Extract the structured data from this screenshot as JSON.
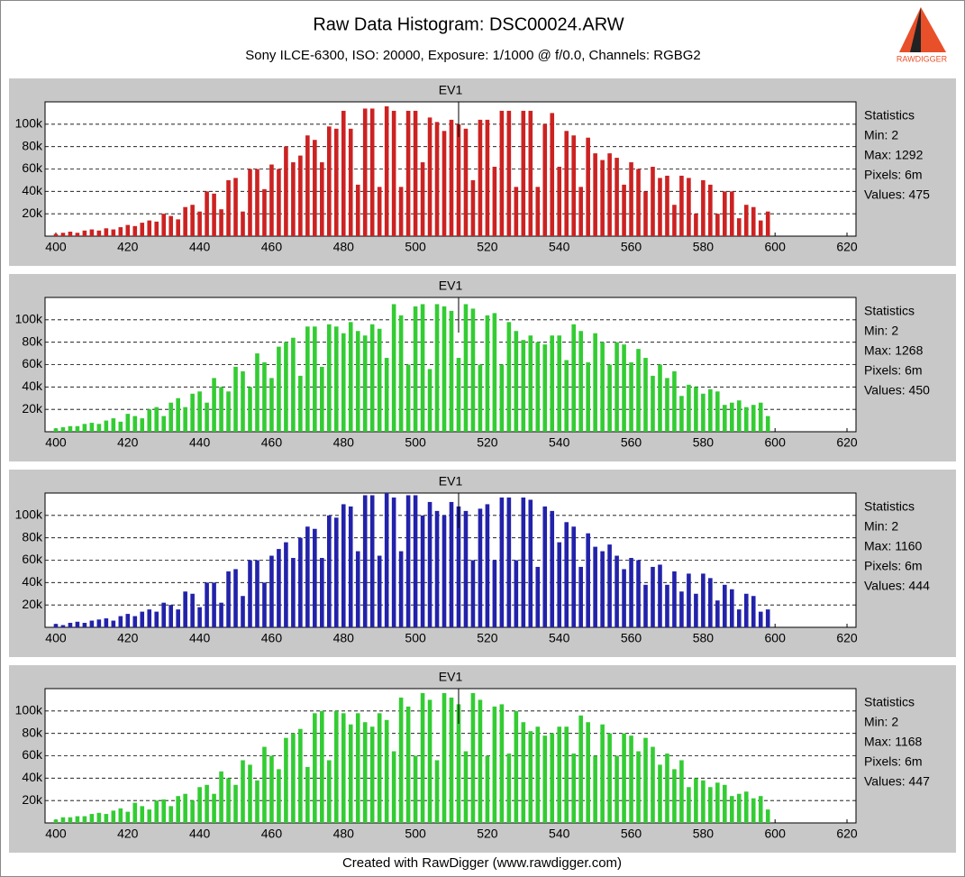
{
  "header": {
    "title": "Raw Data Histogram: DSC00024.ARW",
    "subtitle": "Sony ILCE-6300, ISO: 20000, Exposure: 1/1000 @ f/0.0, Channels: RGBG2"
  },
  "logo": "RAWDIGGER",
  "footer": "Created with RawDigger (www.rawdigger.com)",
  "chart_data": [
    {
      "type": "bar",
      "title": "EV1",
      "color": "#cc2222",
      "marker": 512,
      "x": [
        400,
        402,
        404,
        406,
        408,
        410,
        412,
        414,
        416,
        418,
        420,
        422,
        424,
        426,
        428,
        430,
        432,
        434,
        436,
        438,
        440,
        442,
        444,
        446,
        448,
        450,
        452,
        454,
        456,
        458,
        460,
        462,
        464,
        466,
        468,
        470,
        472,
        474,
        476,
        478,
        480,
        482,
        484,
        486,
        488,
        490,
        492,
        494,
        496,
        498,
        500,
        502,
        504,
        506,
        508,
        510,
        512,
        514,
        516,
        518,
        520,
        522,
        524,
        526,
        528,
        530,
        532,
        534,
        536,
        538,
        540,
        542,
        544,
        546,
        548,
        550,
        552,
        554,
        556,
        558,
        560,
        562,
        564,
        566,
        568,
        570,
        572,
        574,
        576,
        578,
        580,
        582,
        584,
        586,
        588,
        590,
        592,
        594,
        596,
        598
      ],
      "values": [
        2000,
        3000,
        4000,
        3000,
        5000,
        6000,
        5000,
        7000,
        6000,
        8000,
        10000,
        9000,
        12000,
        14000,
        13000,
        20000,
        18000,
        15000,
        26000,
        28000,
        22000,
        40000,
        38000,
        24000,
        50000,
        52000,
        22000,
        60000,
        60000,
        42000,
        64000,
        60000,
        80000,
        66000,
        72000,
        90000,
        86000,
        66000,
        98000,
        96000,
        112000,
        96000,
        46000,
        114000,
        114000,
        44000,
        116000,
        112000,
        44000,
        112000,
        112000,
        66000,
        106000,
        102000,
        94000,
        104000,
        100000,
        96000,
        50000,
        104000,
        104000,
        62000,
        112000,
        112000,
        44000,
        112000,
        112000,
        44000,
        100000,
        110000,
        62000,
        94000,
        90000,
        44000,
        88000,
        74000,
        68000,
        74000,
        70000,
        46000,
        66000,
        60000,
        40000,
        62000,
        52000,
        54000,
        28000,
        54000,
        52000,
        20000,
        50000,
        46000,
        20000,
        40000,
        40000,
        16000,
        28000,
        26000,
        14000,
        22000
      ],
      "xlim": [
        397,
        622.5
      ],
      "ylim": [
        0,
        120000
      ],
      "xticks": [
        400,
        420,
        440,
        460,
        480,
        500,
        520,
        540,
        560,
        580,
        600,
        620
      ],
      "yticks": [
        {
          "value": 20000,
          "label": "20k"
        },
        {
          "value": 40000,
          "label": "40k"
        },
        {
          "value": 60000,
          "label": "60k"
        },
        {
          "value": 80000,
          "label": "80k"
        },
        {
          "value": 100000,
          "label": "100k"
        }
      ],
      "grid": true,
      "stats": [
        "Statistics",
        "Min: 2",
        "Max: 1292",
        "Pixels: 6m",
        "Values: 475"
      ]
    },
    {
      "type": "bar",
      "title": "EV1",
      "color": "#33cc33",
      "marker": 512,
      "x": [
        400,
        402,
        404,
        406,
        408,
        410,
        412,
        414,
        416,
        418,
        420,
        422,
        424,
        426,
        428,
        430,
        432,
        434,
        436,
        438,
        440,
        442,
        444,
        446,
        448,
        450,
        452,
        454,
        456,
        458,
        460,
        462,
        464,
        466,
        468,
        470,
        472,
        474,
        476,
        478,
        480,
        482,
        484,
        486,
        488,
        490,
        492,
        494,
        496,
        498,
        500,
        502,
        504,
        506,
        508,
        510,
        512,
        514,
        516,
        518,
        520,
        522,
        524,
        526,
        528,
        530,
        532,
        534,
        536,
        538,
        540,
        542,
        544,
        546,
        548,
        550,
        552,
        554,
        556,
        558,
        560,
        562,
        564,
        566,
        568,
        570,
        572,
        574,
        576,
        578,
        580,
        582,
        584,
        586,
        588,
        590,
        592,
        594,
        596,
        598
      ],
      "values": [
        3000,
        4000,
        5000,
        5000,
        7000,
        8000,
        7000,
        10000,
        12000,
        9000,
        16000,
        14000,
        12000,
        20000,
        22000,
        14000,
        26000,
        30000,
        22000,
        34000,
        36000,
        26000,
        48000,
        40000,
        36000,
        58000,
        54000,
        40000,
        70000,
        62000,
        48000,
        76000,
        80000,
        84000,
        50000,
        94000,
        94000,
        58000,
        96000,
        94000,
        88000,
        98000,
        90000,
        86000,
        96000,
        92000,
        66000,
        114000,
        104000,
        60000,
        112000,
        114000,
        56000,
        114000,
        112000,
        108000,
        66000,
        114000,
        110000,
        60000,
        104000,
        106000,
        60000,
        98000,
        90000,
        82000,
        86000,
        80000,
        78000,
        86000,
        86000,
        64000,
        96000,
        90000,
        62000,
        88000,
        80000,
        60000,
        80000,
        78000,
        62000,
        74000,
        66000,
        50000,
        60000,
        48000,
        54000,
        32000,
        42000,
        40000,
        34000,
        38000,
        36000,
        24000,
        26000,
        28000,
        22000,
        24000,
        26000,
        14000
      ],
      "xlim": [
        397,
        622.5
      ],
      "ylim": [
        0,
        120000
      ],
      "xticks": [
        400,
        420,
        440,
        460,
        480,
        500,
        520,
        540,
        560,
        580,
        600,
        620
      ],
      "yticks": [
        {
          "value": 20000,
          "label": "20k"
        },
        {
          "value": 40000,
          "label": "40k"
        },
        {
          "value": 60000,
          "label": "60k"
        },
        {
          "value": 80000,
          "label": "80k"
        },
        {
          "value": 100000,
          "label": "100k"
        }
      ],
      "grid": true,
      "stats": [
        "Statistics",
        "Min: 2",
        "Max: 1268",
        "Pixels: 6m",
        "Values: 450"
      ]
    },
    {
      "type": "bar",
      "title": "EV1",
      "color": "#2222aa",
      "marker": 512,
      "x": [
        400,
        402,
        404,
        406,
        408,
        410,
        412,
        414,
        416,
        418,
        420,
        422,
        424,
        426,
        428,
        430,
        432,
        434,
        436,
        438,
        440,
        442,
        444,
        446,
        448,
        450,
        452,
        454,
        456,
        458,
        460,
        462,
        464,
        466,
        468,
        470,
        472,
        474,
        476,
        478,
        480,
        482,
        484,
        486,
        488,
        490,
        492,
        494,
        496,
        498,
        500,
        502,
        504,
        506,
        508,
        510,
        512,
        514,
        516,
        518,
        520,
        522,
        524,
        526,
        528,
        530,
        532,
        534,
        536,
        538,
        540,
        542,
        544,
        546,
        548,
        550,
        552,
        554,
        556,
        558,
        560,
        562,
        564,
        566,
        568,
        570,
        572,
        574,
        576,
        578,
        580,
        582,
        584,
        586,
        588,
        590,
        592,
        594,
        596,
        598
      ],
      "values": [
        3000,
        2000,
        4000,
        5000,
        4000,
        6000,
        7000,
        8000,
        6000,
        10000,
        12000,
        10000,
        14000,
        16000,
        14000,
        22000,
        20000,
        16000,
        32000,
        30000,
        18000,
        40000,
        40000,
        22000,
        50000,
        52000,
        28000,
        60000,
        60000,
        40000,
        64000,
        70000,
        76000,
        62000,
        80000,
        90000,
        88000,
        62000,
        100000,
        98000,
        110000,
        108000,
        68000,
        118000,
        118000,
        64000,
        120000,
        116000,
        68000,
        118000,
        118000,
        100000,
        112000,
        104000,
        100000,
        112000,
        108000,
        104000,
        60000,
        106000,
        110000,
        60000,
        116000,
        116000,
        60000,
        116000,
        114000,
        54000,
        108000,
        104000,
        76000,
        94000,
        90000,
        54000,
        84000,
        72000,
        68000,
        74000,
        64000,
        52000,
        62000,
        60000,
        38000,
        54000,
        56000,
        38000,
        50000,
        32000,
        48000,
        30000,
        48000,
        44000,
        24000,
        38000,
        34000,
        16000,
        30000,
        28000,
        14000,
        16000
      ],
      "xlim": [
        397,
        622.5
      ],
      "ylim": [
        0,
        120000
      ],
      "xticks": [
        400,
        420,
        440,
        460,
        480,
        500,
        520,
        540,
        560,
        580,
        600,
        620
      ],
      "yticks": [
        {
          "value": 20000,
          "label": "20k"
        },
        {
          "value": 40000,
          "label": "40k"
        },
        {
          "value": 60000,
          "label": "60k"
        },
        {
          "value": 80000,
          "label": "80k"
        },
        {
          "value": 100000,
          "label": "100k"
        }
      ],
      "grid": true,
      "stats": [
        "Statistics",
        "Min: 2",
        "Max: 1160",
        "Pixels: 6m",
        "Values: 444"
      ]
    },
    {
      "type": "bar",
      "title": "EV1",
      "color": "#33cc33",
      "marker": 512,
      "x": [
        400,
        402,
        404,
        406,
        408,
        410,
        412,
        414,
        416,
        418,
        420,
        422,
        424,
        426,
        428,
        430,
        432,
        434,
        436,
        438,
        440,
        442,
        444,
        446,
        448,
        450,
        452,
        454,
        456,
        458,
        460,
        462,
        464,
        466,
        468,
        470,
        472,
        474,
        476,
        478,
        480,
        482,
        484,
        486,
        488,
        490,
        492,
        494,
        496,
        498,
        500,
        502,
        504,
        506,
        508,
        510,
        512,
        514,
        516,
        518,
        520,
        522,
        524,
        526,
        528,
        530,
        532,
        534,
        536,
        538,
        540,
        542,
        544,
        546,
        548,
        550,
        552,
        554,
        556,
        558,
        560,
        562,
        564,
        566,
        568,
        570,
        572,
        574,
        576,
        578,
        580,
        582,
        584,
        586,
        588,
        590,
        592,
        594,
        596,
        598
      ],
      "values": [
        3000,
        5000,
        5000,
        6000,
        6000,
        8000,
        9000,
        8000,
        11000,
        13000,
        10000,
        18000,
        15000,
        12000,
        20000,
        21000,
        15000,
        24000,
        26000,
        20000,
        32000,
        34000,
        26000,
        46000,
        40000,
        34000,
        56000,
        52000,
        38000,
        68000,
        60000,
        48000,
        76000,
        80000,
        84000,
        50000,
        98000,
        100000,
        56000,
        100000,
        98000,
        88000,
        98000,
        90000,
        86000,
        98000,
        92000,
        64000,
        112000,
        104000,
        60000,
        116000,
        110000,
        56000,
        116000,
        112000,
        106000,
        64000,
        116000,
        110000,
        60000,
        104000,
        106000,
        62000,
        100000,
        90000,
        82000,
        86000,
        78000,
        80000,
        86000,
        86000,
        62000,
        96000,
        90000,
        60000,
        88000,
        80000,
        60000,
        80000,
        78000,
        64000,
        76000,
        68000,
        52000,
        62000,
        48000,
        56000,
        32000,
        40000,
        38000,
        32000,
        36000,
        34000,
        24000,
        26000,
        28000,
        22000,
        24000,
        12000
      ],
      "xlim": [
        397,
        622.5
      ],
      "ylim": [
        0,
        120000
      ],
      "xticks": [
        400,
        420,
        440,
        460,
        480,
        500,
        520,
        540,
        560,
        580,
        600,
        620
      ],
      "yticks": [
        {
          "value": 20000,
          "label": "20k"
        },
        {
          "value": 40000,
          "label": "40k"
        },
        {
          "value": 60000,
          "label": "60k"
        },
        {
          "value": 80000,
          "label": "80k"
        },
        {
          "value": 100000,
          "label": "100k"
        }
      ],
      "grid": true,
      "stats": [
        "Statistics",
        "Min: 2",
        "Max: 1168",
        "Pixels: 6m",
        "Values: 447"
      ]
    }
  ]
}
